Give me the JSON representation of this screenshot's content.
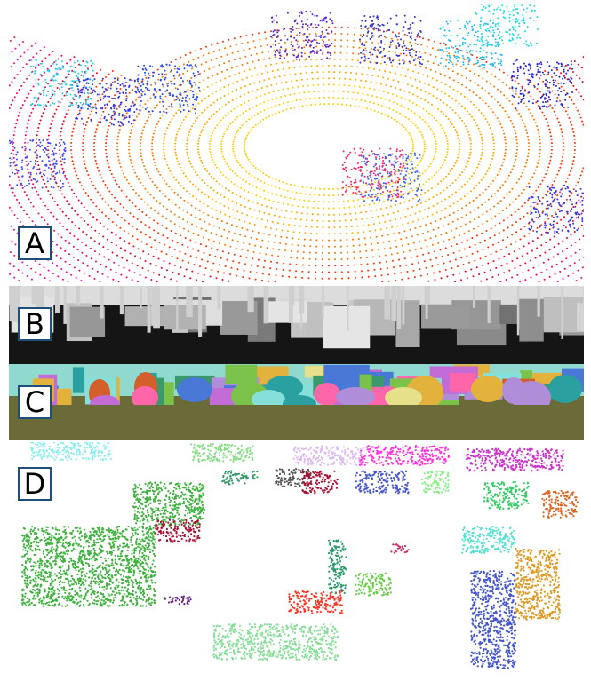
{
  "figure": {
    "panels": [
      {
        "label": "A",
        "content": "lidar-point-cloud-colored-by-range",
        "colors": [
          "#ff0000",
          "#ff8800",
          "#ffdd00",
          "#ff00aa",
          "#cc00ff",
          "#2222ff",
          "#22dddd"
        ]
      },
      {
        "label": "B",
        "content": "range-image-grayscale",
        "colors": [
          "#151515",
          "#bdbdbd",
          "#e6e6e6"
        ]
      },
      {
        "label": "C",
        "content": "semantic-segmentation-image",
        "colors": [
          "#6b6b3a",
          "#86e0d9",
          "#d35f2a",
          "#c36bd6",
          "#3a9a6b"
        ]
      },
      {
        "label": "D",
        "content": "instance-segmented-point-cloud",
        "colors": [
          "#3fb13f",
          "#4455cc",
          "#dd9922",
          "#aa1133",
          "#55e0d0",
          "#ff3322",
          "#cc33cc"
        ]
      }
    ]
  }
}
